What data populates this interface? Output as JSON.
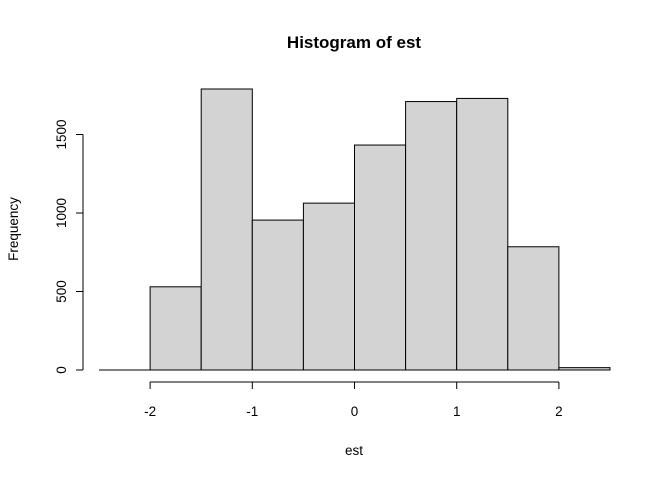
{
  "chart_data": {
    "type": "bar",
    "title": "Histogram of est",
    "xlabel": "est",
    "ylabel": "Frequency",
    "bin_edges": [
      -2.5,
      -2.0,
      -1.5,
      -1.0,
      -0.5,
      0.0,
      0.5,
      1.0,
      1.5,
      2.0,
      2.5
    ],
    "values": [
      0,
      530,
      1790,
      955,
      1063,
      1433,
      1710,
      1730,
      785,
      15
    ],
    "xlim": [
      -2.5,
      2.5
    ],
    "ylim": [
      0,
      1790
    ],
    "x_ticks": [
      -2,
      -1,
      0,
      1,
      2
    ],
    "x_tick_labels": [
      "-2",
      "-1",
      "0",
      "1",
      "2"
    ],
    "y_ticks": [
      0,
      500,
      1000,
      1500
    ],
    "y_tick_labels": [
      "0",
      "500",
      "1000",
      "1500"
    ],
    "bar_color": "#d3d3d3",
    "grid": false,
    "legend": "none"
  }
}
